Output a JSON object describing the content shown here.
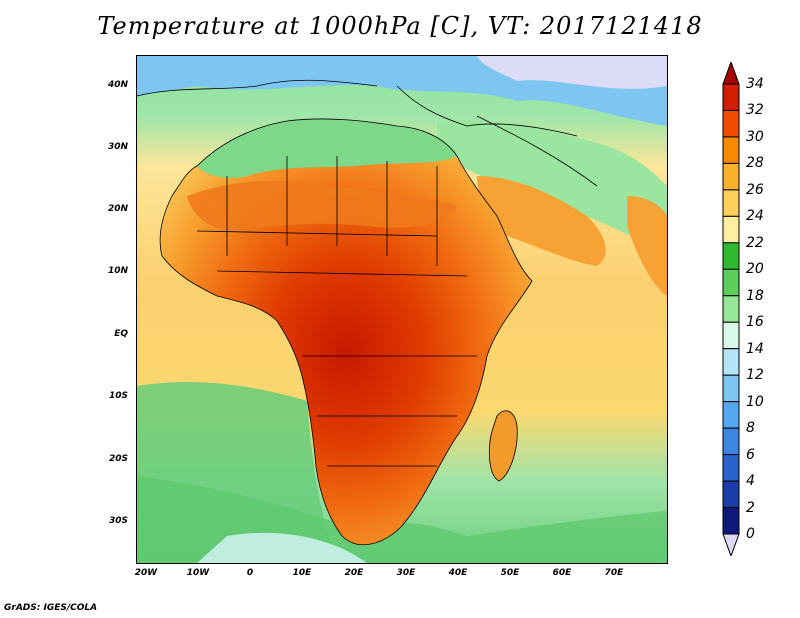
{
  "title": "Temperature at 1000hPa [C], VT: 2017121418",
  "credit": "GrADS: IGES/COLA",
  "lat_labels": [
    "40N",
    "30N",
    "20N",
    "10N",
    "EQ",
    "10S",
    "20S",
    "30S"
  ],
  "lon_labels": [
    "20W",
    "10W",
    "0",
    "10E",
    "20E",
    "30E",
    "40E",
    "50E",
    "60E",
    "70E"
  ],
  "colorbar": {
    "labels": [
      "34",
      "32",
      "30",
      "28",
      "26",
      "24",
      "22",
      "20",
      "18",
      "16",
      "14",
      "12",
      "10",
      "8",
      "6",
      "4",
      "2",
      "0"
    ],
    "colors": [
      "#a50000",
      "#cf1d00",
      "#f04b00",
      "#f78a00",
      "#f9b02a",
      "#fcd25a",
      "#fef0a0",
      "#30b830",
      "#5cce5c",
      "#98e698",
      "#d8f8e8",
      "#b4e4f8",
      "#7ec6f2",
      "#56a8ee",
      "#3c86e2",
      "#2a62cc",
      "#1c3caa",
      "#0e1a7a",
      "#08084a"
    ]
  },
  "map": {
    "ocean_color": "#fbd370",
    "land_color": "#e9541c"
  }
}
